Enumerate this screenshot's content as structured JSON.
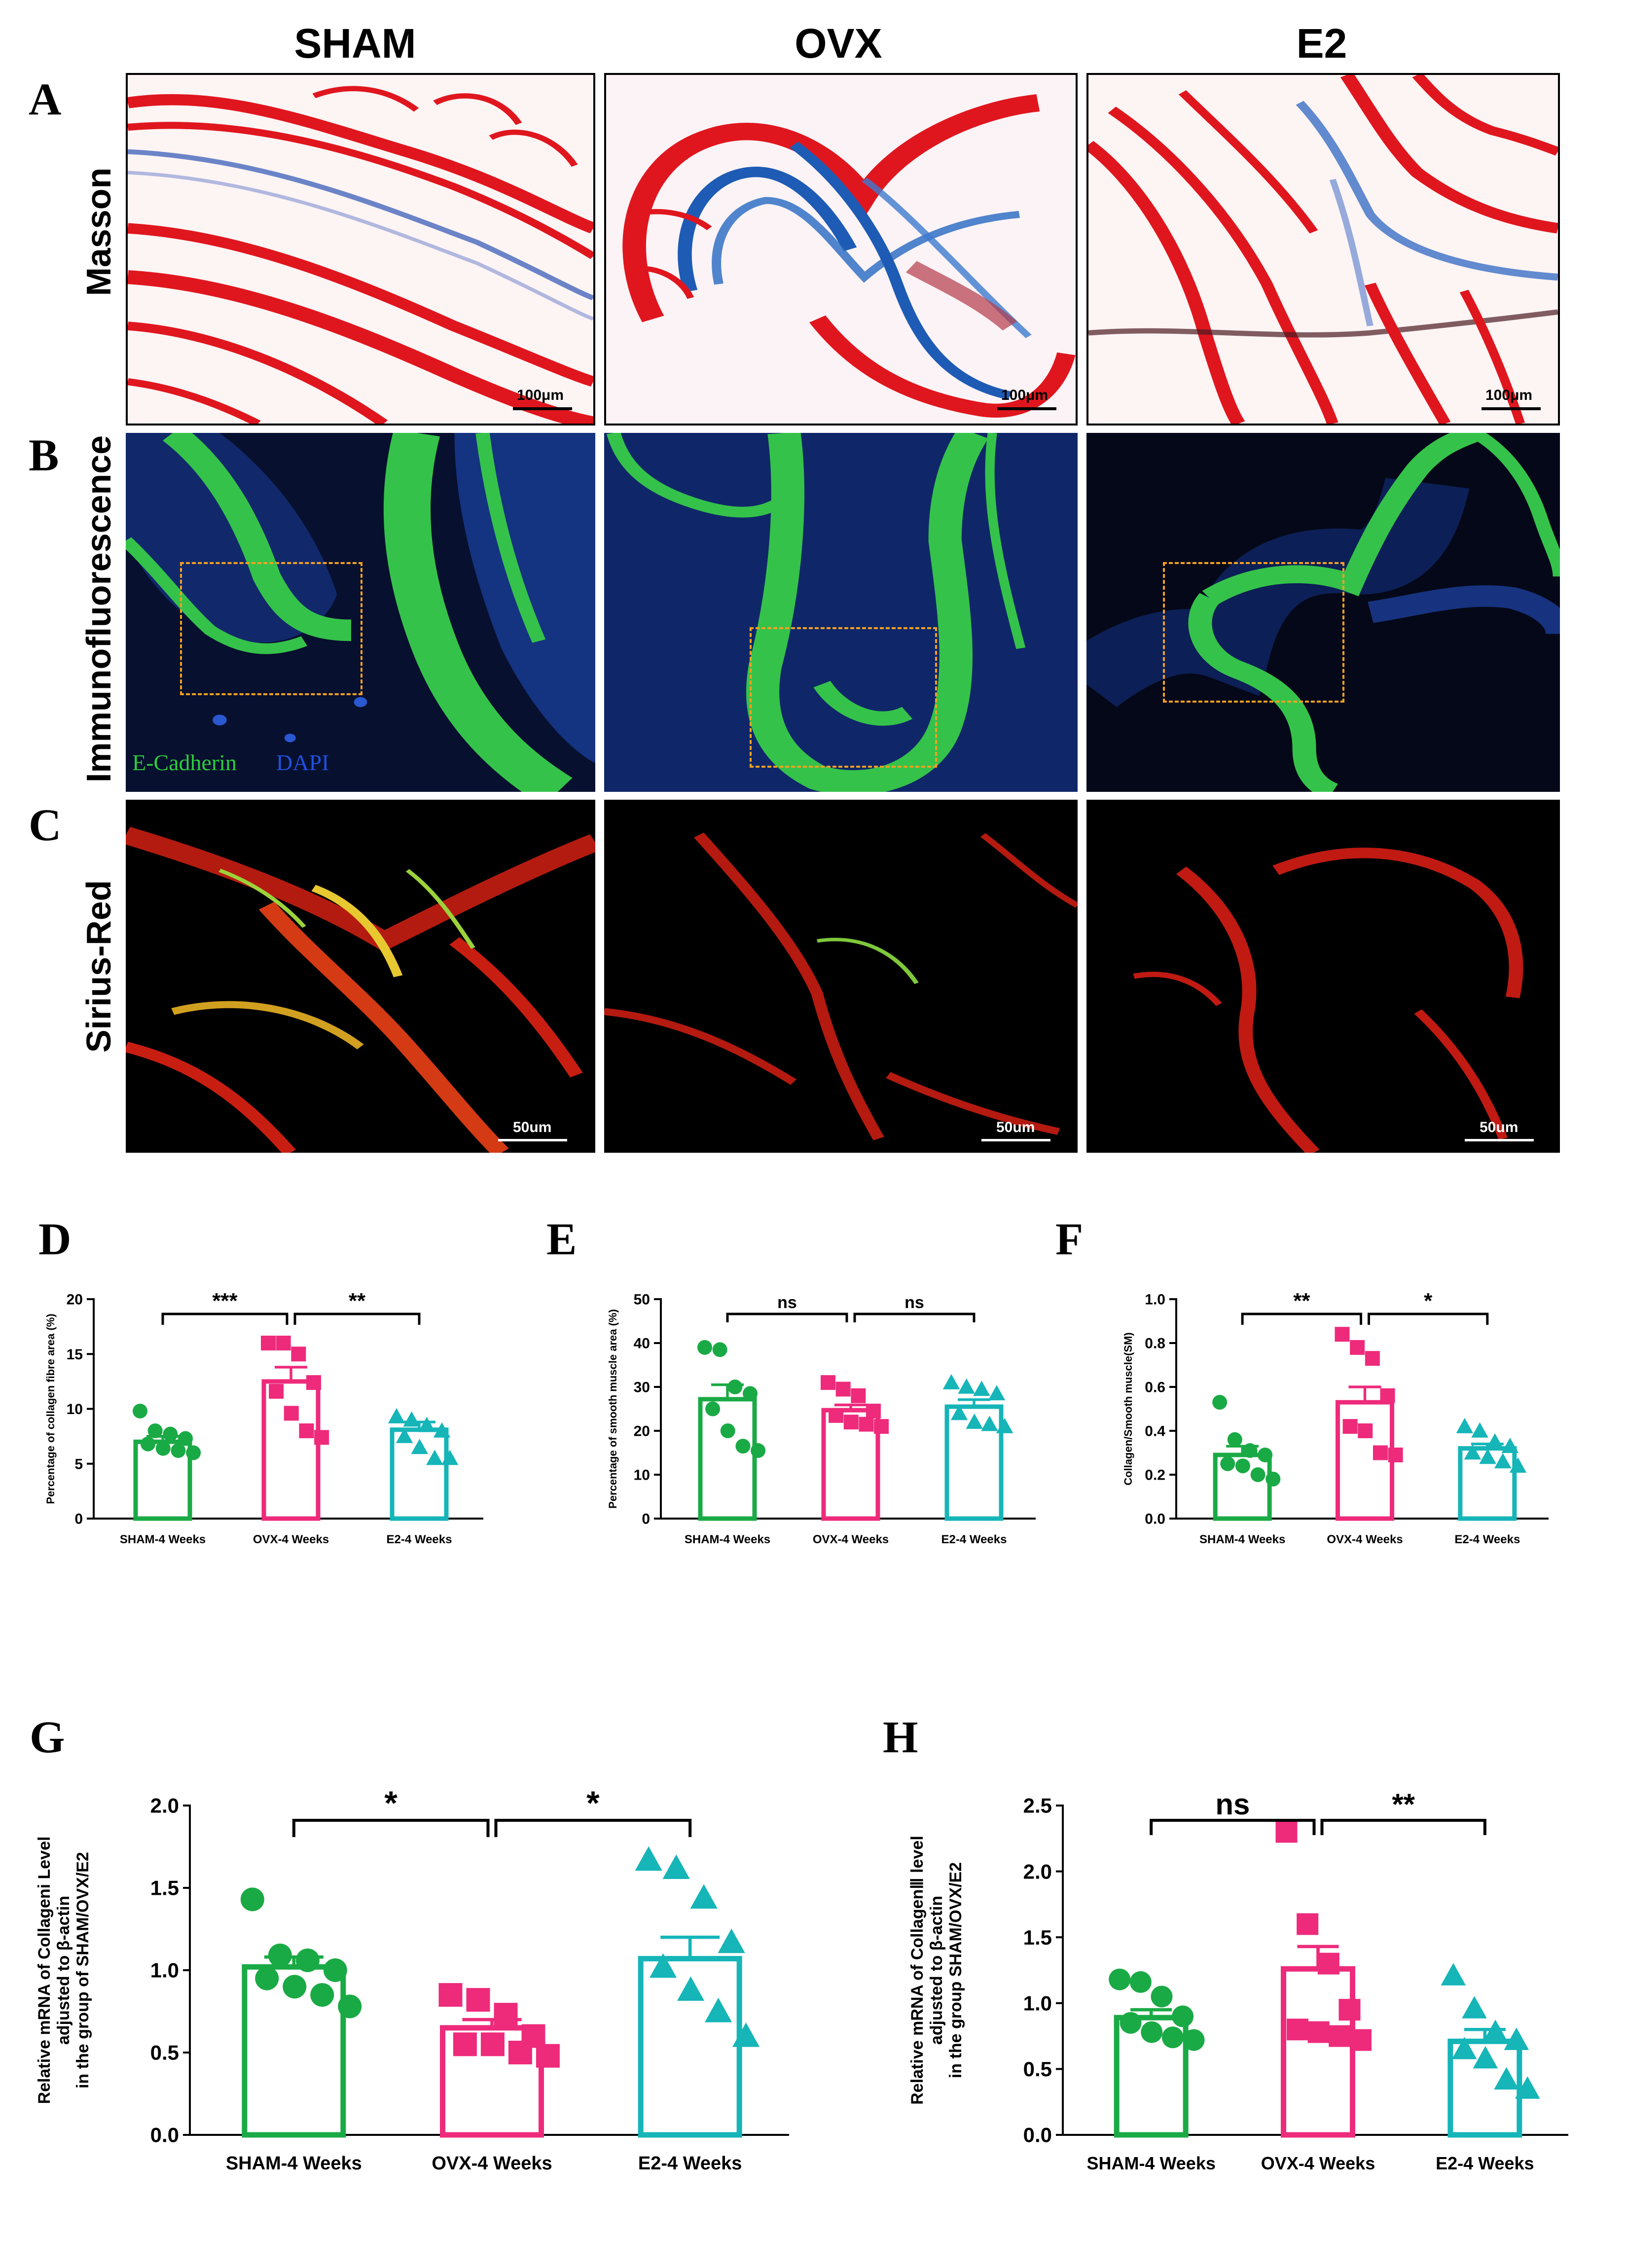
{
  "columns": [
    "SHAM",
    "OVX",
    "E2"
  ],
  "panel_letters": [
    "A",
    "B",
    "C",
    "D",
    "E",
    "F",
    "G",
    "H"
  ],
  "row_labels": [
    "Masson",
    "Immunofluorescence",
    "Sirius-Red"
  ],
  "scale_bars": {
    "masson": "100μm",
    "sirius": "50um"
  },
  "if_legend": {
    "ecadherin": "E-Cadherin",
    "dapi": "DAPI",
    "ecadherin_color": "#2ecc40",
    "dapi_color": "#2050e0"
  },
  "colors": {
    "sham": "#1aaa45",
    "ovx": "#ee2a7b",
    "e2": "#15b5b8"
  },
  "chart_data": [
    {
      "panel": "D",
      "type": "bar",
      "categories": [
        "SHAM-4 Weeks",
        "OVX-4 Weeks",
        "E2-4 Weeks"
      ],
      "ylabel": "Percentage of collagen fibre area (%)",
      "ylim": [
        0,
        20
      ],
      "yticks": [
        0,
        5,
        10,
        15,
        20
      ],
      "means": [
        7.0,
        12.5,
        8.1
      ],
      "sem": [
        0.5,
        1.3,
        0.7
      ],
      "points": [
        [
          9.8,
          8.0,
          7.7,
          7.3,
          6.8,
          6.4,
          6.2,
          6.0
        ],
        [
          16.0,
          16.0,
          15.0,
          12.4,
          11.6,
          9.6,
          8.0,
          7.4
        ],
        [
          9.3,
          9.0,
          8.5,
          8.0,
          7.5,
          6.5,
          5.5,
          5.5
        ]
      ],
      "markers": [
        "circle",
        "square",
        "triangle"
      ],
      "comparisons": [
        {
          "from": 0,
          "to": 1,
          "label": "***"
        },
        {
          "from": 1,
          "to": 2,
          "label": "**"
        }
      ]
    },
    {
      "panel": "E",
      "type": "bar",
      "categories": [
        "SHAM-4 Weeks",
        "OVX-4 Weeks",
        "E2-4 Weeks"
      ],
      "ylabel": "Percentage of smooth muscle area (%)",
      "ylim": [
        0,
        50
      ],
      "yticks": [
        0,
        10,
        20,
        30,
        40,
        50
      ],
      "means": [
        27.2,
        24.7,
        25.5
      ],
      "sem": [
        3.3,
        1.2,
        1.6
      ],
      "points": [
        [
          39.0,
          38.5,
          30.0,
          28.5,
          25.0,
          20.0,
          16.5,
          15.5
        ],
        [
          31.0,
          29.5,
          28.0,
          24.5,
          23.5,
          22.0,
          21.5,
          21.0
        ],
        [
          31.0,
          30.0,
          29.5,
          28.5,
          24.0,
          22.0,
          21.5,
          21.0
        ]
      ],
      "markers": [
        "circle",
        "square",
        "triangle"
      ],
      "comparisons": [
        {
          "from": 0,
          "to": 1,
          "label": "ns"
        },
        {
          "from": 1,
          "to": 2,
          "label": "ns"
        }
      ]
    },
    {
      "panel": "F",
      "type": "bar",
      "categories": [
        "SHAM-4 Weeks",
        "OVX-4 Weeks",
        "E2-4 Weeks"
      ],
      "ylabel": "Collagen/Smooth muscle(SM)",
      "ylim": [
        0,
        1.0
      ],
      "yticks": [
        0.0,
        0.2,
        0.4,
        0.6,
        0.8,
        1.0
      ],
      "means": [
        0.29,
        0.53,
        0.32
      ],
      "sem": [
        0.04,
        0.07,
        0.02
      ],
      "points": [
        [
          0.53,
          0.36,
          0.31,
          0.29,
          0.25,
          0.24,
          0.2,
          0.18
        ],
        [
          0.84,
          0.78,
          0.73,
          0.56,
          0.42,
          0.4,
          0.3,
          0.29
        ],
        [
          0.42,
          0.4,
          0.35,
          0.33,
          0.3,
          0.28,
          0.26,
          0.24
        ]
      ],
      "markers": [
        "circle",
        "square",
        "triangle"
      ],
      "comparisons": [
        {
          "from": 0,
          "to": 1,
          "label": "**"
        },
        {
          "from": 1,
          "to": 2,
          "label": "*"
        }
      ]
    },
    {
      "panel": "G",
      "type": "bar",
      "categories": [
        "SHAM-4 Weeks",
        "OVX-4 Weeks",
        "E2-4 Weeks"
      ],
      "ylabel": [
        "Relative mRNA of Collageni Level",
        "adjusted to β-actin",
        "in the group of SHAM/OVX/E2"
      ],
      "ylim": [
        0,
        2.0
      ],
      "yticks": [
        0.0,
        0.5,
        1.0,
        1.5,
        2.0
      ],
      "means": [
        1.02,
        0.65,
        1.07
      ],
      "sem": [
        0.06,
        0.05,
        0.13
      ],
      "points": [
        [
          1.43,
          1.09,
          1.06,
          1.0,
          0.95,
          0.9,
          0.85,
          0.78
        ],
        [
          0.85,
          0.82,
          0.73,
          0.6,
          0.55,
          0.55,
          0.5,
          0.48
        ],
        [
          1.67,
          1.62,
          1.44,
          1.17,
          1.02,
          0.88,
          0.75,
          0.6
        ]
      ],
      "markers": [
        "circle",
        "square",
        "triangle"
      ],
      "comparisons": [
        {
          "from": 0,
          "to": 1,
          "label": "*"
        },
        {
          "from": 1,
          "to": 2,
          "label": "*"
        }
      ]
    },
    {
      "panel": "H",
      "type": "bar",
      "categories": [
        "SHAM-4 Weeks",
        "OVX-4 Weeks",
        "E2-4 Weeks"
      ],
      "ylabel": [
        "Relative mRNA of CollagenⅢ level",
        "adjusted to β-actin",
        "in the group SHAM/OVX/E2"
      ],
      "ylim": [
        0,
        2.5
      ],
      "yticks": [
        0.0,
        0.5,
        1.0,
        1.5,
        2.0,
        2.5
      ],
      "means": [
        0.89,
        1.26,
        0.71
      ],
      "sem": [
        0.06,
        0.17,
        0.09
      ],
      "points": [
        [
          1.18,
          1.16,
          1.05,
          0.9,
          0.85,
          0.78,
          0.74,
          0.72
        ],
        [
          2.3,
          1.6,
          1.3,
          0.95,
          0.8,
          0.78,
          0.75,
          0.72
        ],
        [
          1.21,
          0.96,
          0.78,
          0.72,
          0.65,
          0.58,
          0.42,
          0.35
        ]
      ],
      "markers": [
        "circle",
        "square",
        "triangle"
      ],
      "comparisons": [
        {
          "from": 0,
          "to": 1,
          "label": "ns"
        },
        {
          "from": 1,
          "to": 2,
          "label": "**"
        }
      ]
    }
  ]
}
